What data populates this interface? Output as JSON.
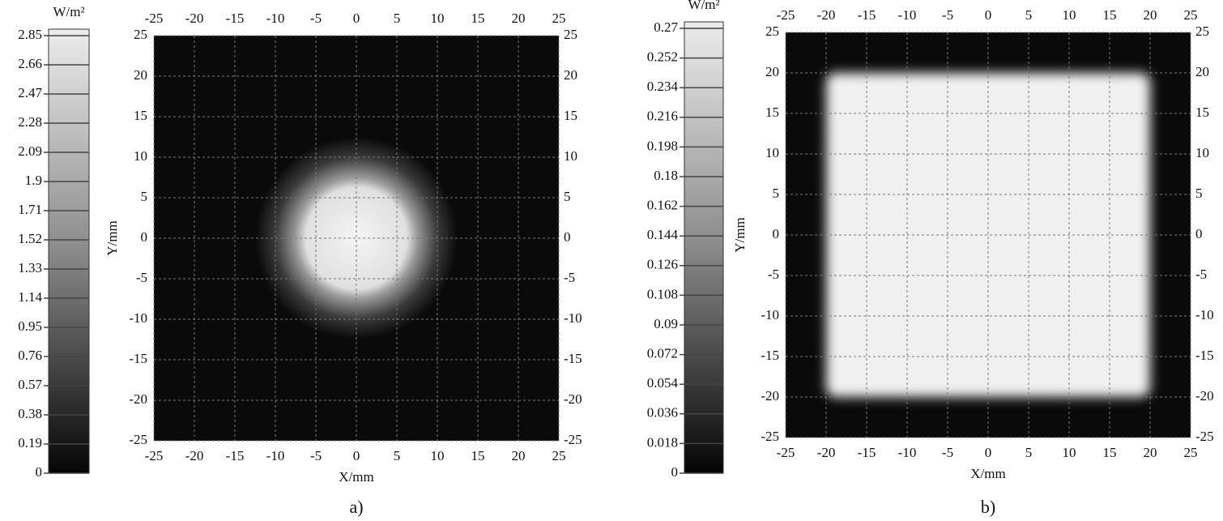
{
  "chart_data": [
    {
      "type": "heatmap",
      "panel_label": "a)",
      "colorbar_label": "W/m²",
      "colorbar_lim": [
        0,
        2.85
      ],
      "colorbar_ticks": [
        0,
        0.19,
        0.38,
        0.57,
        0.76,
        0.95,
        1.14,
        1.33,
        1.52,
        1.71,
        1.9,
        2.09,
        2.28,
        2.47,
        2.66,
        2.85
      ],
      "xlabel": "X/mm",
      "ylabel": "Y/mm",
      "xlim": [
        -25,
        25
      ],
      "ylim": [
        -25,
        25
      ],
      "xticks": [
        -25,
        -20,
        -15,
        -10,
        -5,
        0,
        5,
        10,
        15,
        20,
        25
      ],
      "yticks": [
        -25,
        -20,
        -15,
        -10,
        -5,
        0,
        5,
        10,
        15,
        20,
        25
      ],
      "grid": true
    },
    {
      "type": "heatmap",
      "panel_label": "b)",
      "colorbar_label": "W/m²",
      "colorbar_lim": [
        0,
        0.27
      ],
      "colorbar_ticks": [
        0,
        0.018,
        0.036,
        0.054,
        0.072,
        0.09,
        0.108,
        0.126,
        0.144,
        0.162,
        0.18,
        0.198,
        0.216,
        0.234,
        0.252,
        0.27
      ],
      "xlabel": "X/mm",
      "ylabel": "Y/mm",
      "xlim": [
        -25,
        25
      ],
      "ylim": [
        -25,
        25
      ],
      "xticks": [
        -25,
        -20,
        -15,
        -10,
        -5,
        0,
        5,
        10,
        15,
        20,
        25
      ],
      "yticks": [
        -25,
        -20,
        -15,
        -10,
        -5,
        0,
        5,
        10,
        15,
        20,
        25
      ],
      "grid": true
    }
  ]
}
